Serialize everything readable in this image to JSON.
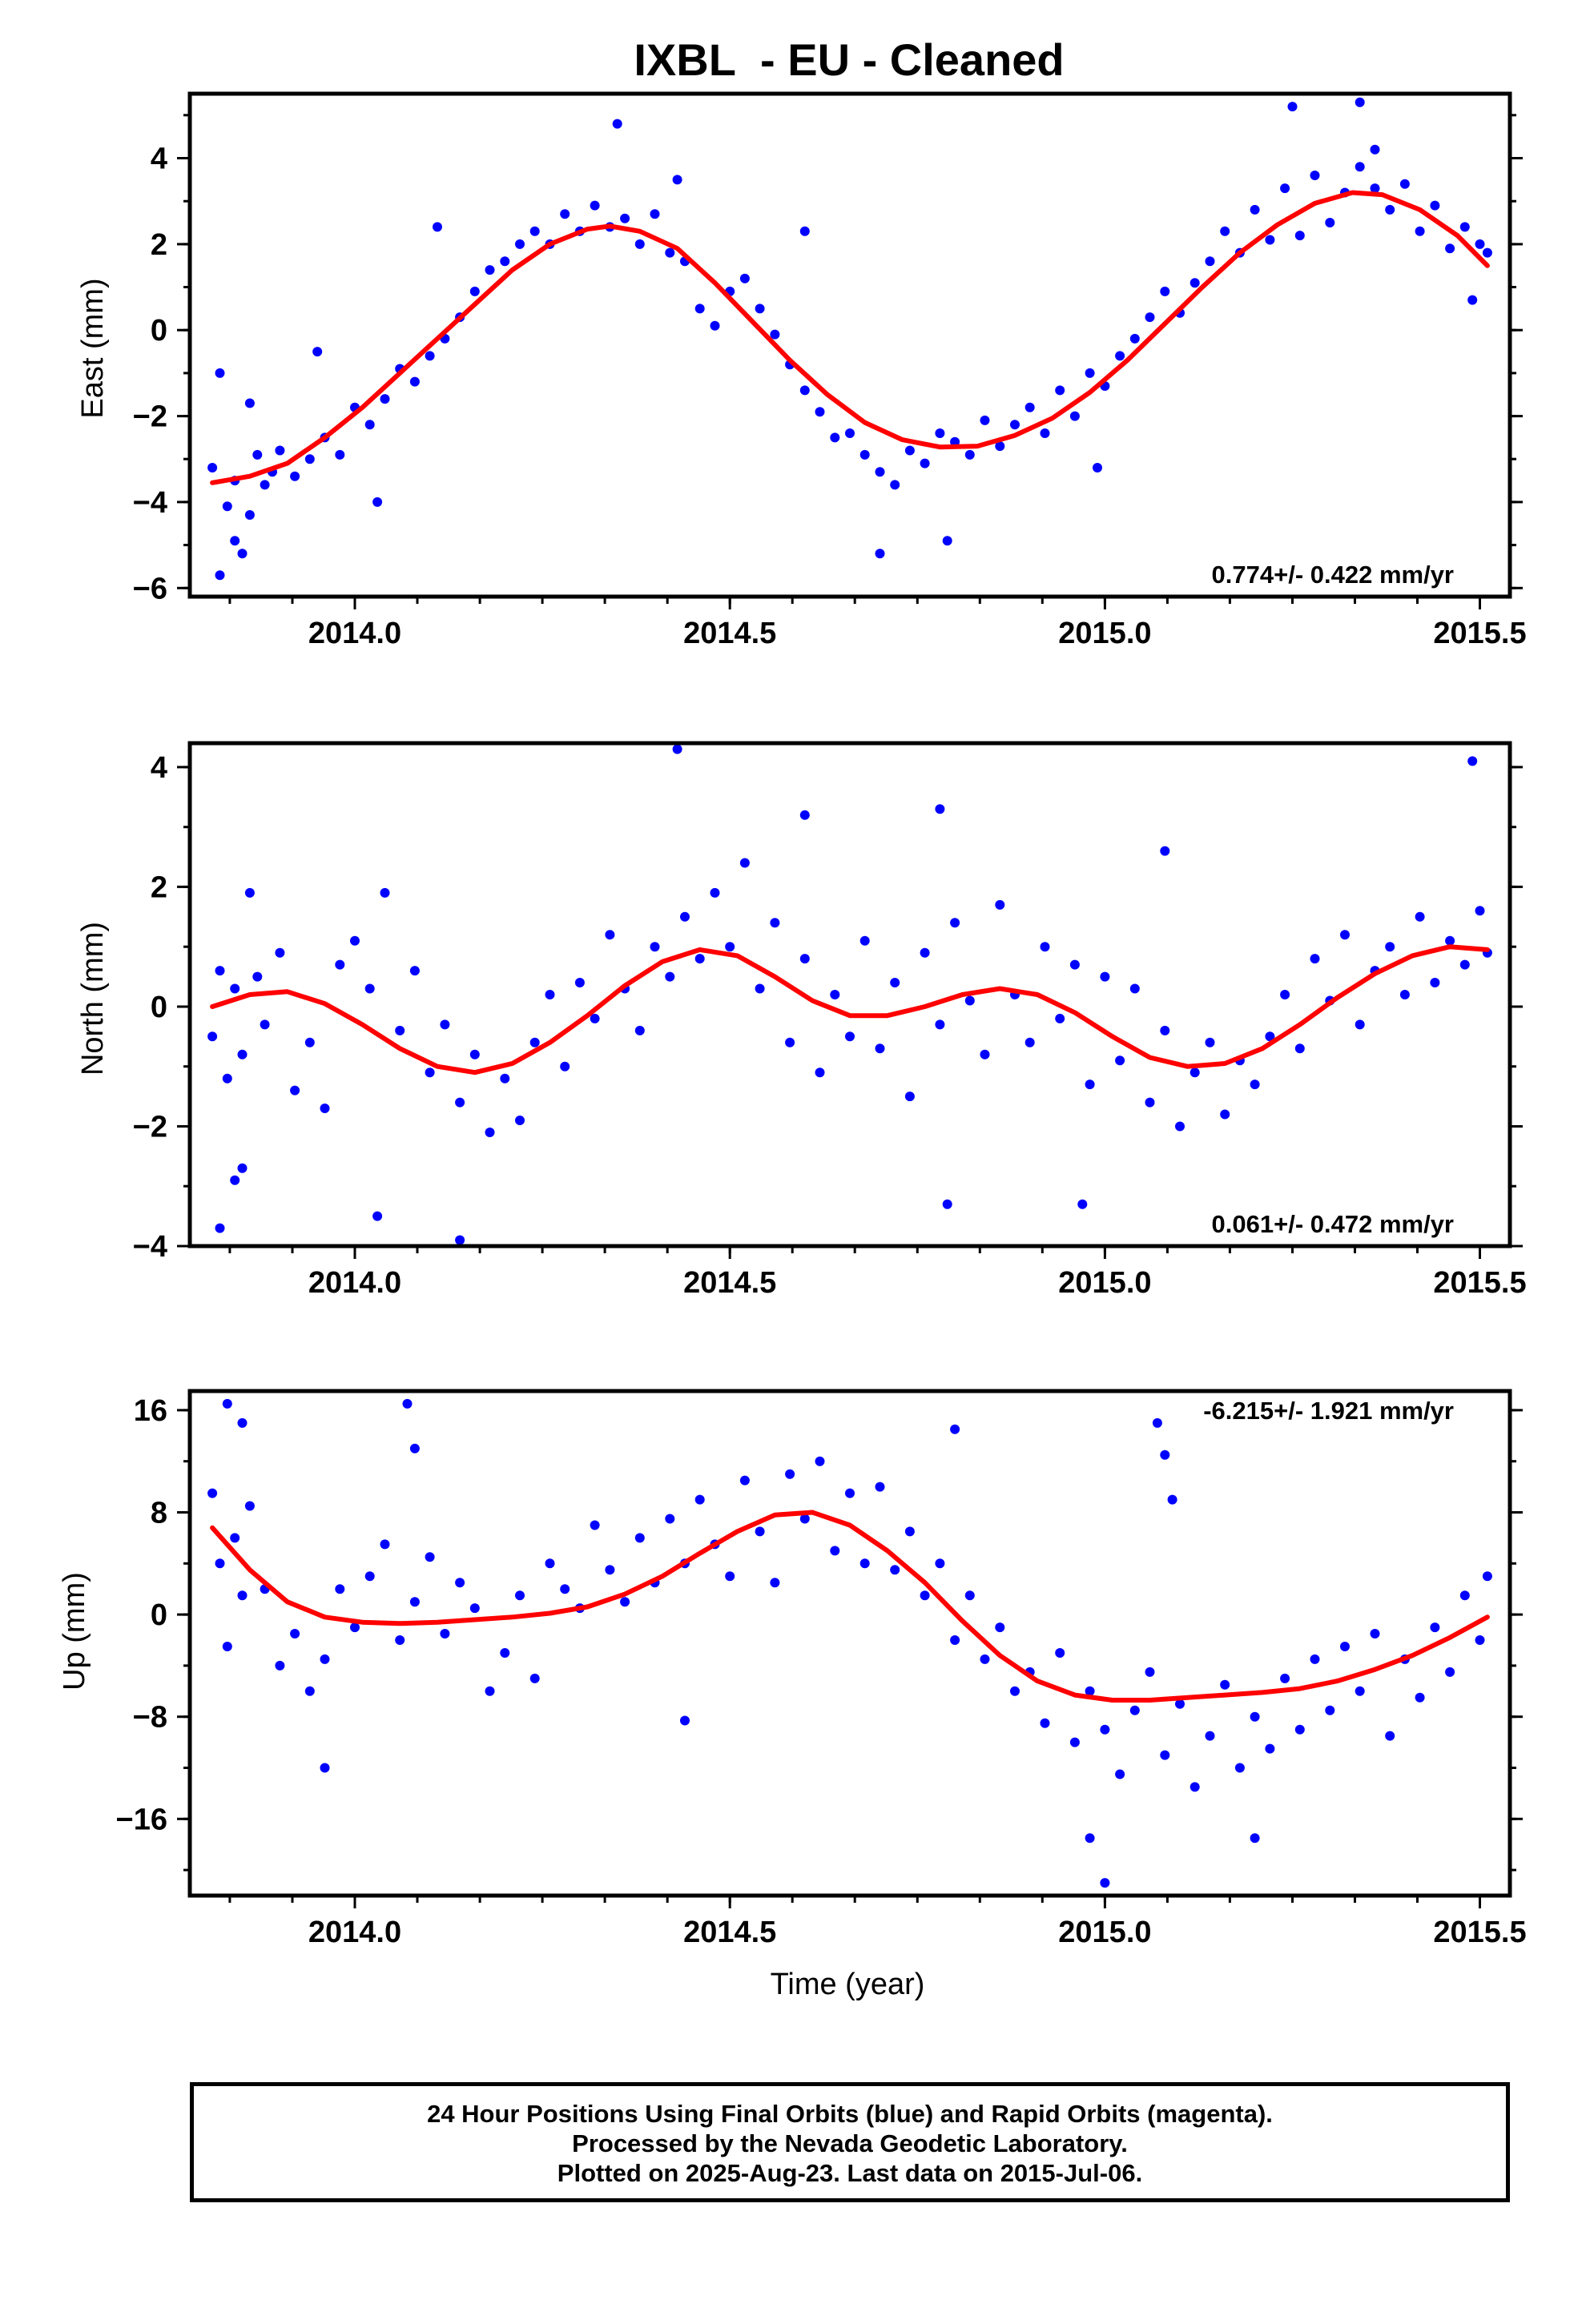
{
  "title": "IXBL  - EU - Cleaned",
  "xlabel": "Time (year)",
  "caption": {
    "line1": "24 Hour Positions Using Final Orbits (blue) and Rapid Orbits (magenta).",
    "line2": "Processed by the Nevada Geodetic Laboratory.",
    "line3": "Plotted on 2025-Aug-23. Last data on 2015-Jul-06."
  },
  "colors": {
    "points": "#0000ff",
    "fit": "#ff0000",
    "frame": "#000000"
  },
  "chart_data": [
    {
      "type": "scatter",
      "panel": "east",
      "ylabel": "East (mm)",
      "xlim": [
        2013.78,
        2015.54
      ],
      "ylim": [
        -6.2,
        5.5
      ],
      "x_ticks": [
        2014.0,
        2014.5,
        2015.0,
        2015.5
      ],
      "x_tick_labels": [
        "2014.0",
        "2014.5",
        "2015.0",
        "2015.5"
      ],
      "y_ticks": [
        -6,
        -4,
        -2,
        0,
        2,
        4
      ],
      "y_tick_labels": [
        "−6",
        "−4",
        "−2",
        "0",
        "2",
        "4"
      ],
      "rate_label": "0.774+/- 0.422 mm/yr",
      "rate_position": "bottom-right",
      "series": [
        {
          "kind": "points",
          "x": [
            2013.81,
            2013.82,
            2013.83,
            2013.84,
            2013.85,
            2013.86,
            2013.87,
            2013.88,
            2013.89,
            2013.9,
            2013.92,
            2013.94,
            2013.96,
            2013.98,
            2014.0,
            2014.02,
            2014.04,
            2014.06,
            2014.08,
            2014.1,
            2014.12,
            2014.14,
            2014.16,
            2014.18,
            2014.2,
            2014.22,
            2014.24,
            2014.26,
            2014.28,
            2014.3,
            2014.32,
            2014.34,
            2014.36,
            2014.38,
            2014.4,
            2014.42,
            2014.44,
            2014.46,
            2014.48,
            2014.5,
            2014.52,
            2014.54,
            2014.56,
            2014.58,
            2014.6,
            2014.62,
            2014.64,
            2014.66,
            2014.68,
            2014.7,
            2014.72,
            2014.74,
            2014.76,
            2014.78,
            2014.8,
            2014.82,
            2014.84,
            2014.86,
            2014.88,
            2014.9,
            2014.92,
            2014.94,
            2014.96,
            2014.98,
            2015.0,
            2015.02,
            2015.04,
            2015.06,
            2015.08,
            2015.1,
            2015.12,
            2015.14,
            2015.16,
            2015.18,
            2015.2,
            2015.22,
            2015.24,
            2015.26,
            2015.28,
            2015.3,
            2015.32,
            2015.34,
            2015.36,
            2015.38,
            2015.4,
            2015.42,
            2015.44,
            2015.46,
            2015.48,
            2015.5,
            2015.51,
            2013.82,
            2013.84,
            2013.86,
            2013.95,
            2014.03,
            2014.11,
            2014.35,
            2014.43,
            2014.6,
            2014.7,
            2014.79,
            2014.99,
            2015.25,
            2015.34,
            2015.36,
            2015.49
          ],
          "y": [
            -3.2,
            -1.0,
            -4.1,
            -3.5,
            -5.2,
            -4.3,
            -2.9,
            -3.6,
            -3.3,
            -2.8,
            -3.4,
            -3.0,
            -2.5,
            -2.9,
            -1.8,
            -2.2,
            -1.6,
            -0.9,
            -1.2,
            -0.6,
            -0.2,
            0.3,
            0.9,
            1.4,
            1.6,
            2.0,
            2.3,
            2.0,
            2.7,
            2.3,
            2.9,
            2.4,
            2.6,
            2.0,
            2.7,
            1.8,
            1.6,
            0.5,
            0.1,
            0.9,
            1.2,
            0.5,
            -0.1,
            -0.8,
            -1.4,
            -1.9,
            -2.5,
            -2.4,
            -2.9,
            -3.3,
            -3.6,
            -2.8,
            -3.1,
            -2.4,
            -2.6,
            -2.9,
            -2.1,
            -2.7,
            -2.2,
            -1.8,
            -2.4,
            -1.4,
            -2.0,
            -1.0,
            -1.3,
            -0.6,
            -0.2,
            0.3,
            0.9,
            0.4,
            1.1,
            1.6,
            2.3,
            1.8,
            2.8,
            2.1,
            3.3,
            2.2,
            3.6,
            2.5,
            3.2,
            3.8,
            3.3,
            2.8,
            3.4,
            2.3,
            2.9,
            1.9,
            2.4,
            2.0,
            1.8,
            -5.7,
            -4.9,
            -1.7,
            -0.5,
            -4.0,
            2.4,
            4.8,
            3.5,
            2.3,
            -5.2,
            -4.9,
            -3.2,
            5.2,
            5.3,
            4.2,
            0.7
          ]
        },
        {
          "kind": "fit",
          "x": [
            2013.81,
            2013.86,
            2013.91,
            2013.96,
            2014.01,
            2014.06,
            2014.11,
            2014.16,
            2014.21,
            2014.26,
            2014.31,
            2014.34,
            2014.38,
            2014.43,
            2014.48,
            2014.53,
            2014.58,
            2014.63,
            2014.68,
            2014.73,
            2014.78,
            2014.83,
            2014.88,
            2014.93,
            2014.98,
            2015.03,
            2015.08,
            2015.13,
            2015.18,
            2015.23,
            2015.28,
            2015.33,
            2015.37,
            2015.42,
            2015.47,
            2015.51
          ],
          "y": [
            -3.55,
            -3.4,
            -3.1,
            -2.5,
            -1.8,
            -1.0,
            -0.2,
            0.6,
            1.4,
            2.0,
            2.35,
            2.42,
            2.3,
            1.9,
            1.1,
            0.2,
            -0.7,
            -1.5,
            -2.15,
            -2.55,
            -2.72,
            -2.7,
            -2.45,
            -2.05,
            -1.45,
            -0.7,
            0.15,
            1.0,
            1.8,
            2.45,
            2.95,
            3.2,
            3.15,
            2.8,
            2.2,
            1.5
          ]
        }
      ]
    },
    {
      "type": "scatter",
      "panel": "north",
      "ylabel": "North (mm)",
      "xlim": [
        2013.78,
        2015.54
      ],
      "ylim": [
        -4.0,
        4.4
      ],
      "x_ticks": [
        2014.0,
        2014.5,
        2015.0,
        2015.5
      ],
      "x_tick_labels": [
        "2014.0",
        "2014.5",
        "2015.0",
        "2015.5"
      ],
      "y_ticks": [
        -4,
        -2,
        0,
        2,
        4
      ],
      "y_tick_labels": [
        "−4",
        "−2",
        "0",
        "2",
        "4"
      ],
      "rate_label": "0.061+/- 0.472 mm/yr",
      "rate_position": "bottom-right",
      "series": [
        {
          "kind": "points",
          "x": [
            2013.81,
            2013.82,
            2013.83,
            2013.84,
            2013.85,
            2013.86,
            2013.87,
            2013.88,
            2013.9,
            2013.92,
            2013.94,
            2013.96,
            2013.98,
            2014.0,
            2014.02,
            2014.04,
            2014.06,
            2014.08,
            2014.1,
            2014.12,
            2014.14,
            2014.16,
            2014.18,
            2014.2,
            2014.22,
            2014.24,
            2014.26,
            2014.28,
            2014.3,
            2014.32,
            2014.34,
            2014.36,
            2014.38,
            2014.4,
            2014.42,
            2014.44,
            2014.46,
            2014.48,
            2014.5,
            2014.52,
            2014.54,
            2014.56,
            2014.58,
            2014.6,
            2014.62,
            2014.64,
            2014.66,
            2014.68,
            2014.7,
            2014.72,
            2014.74,
            2014.76,
            2014.78,
            2014.8,
            2014.82,
            2014.84,
            2014.86,
            2014.88,
            2014.9,
            2014.92,
            2014.94,
            2014.96,
            2014.98,
            2015.0,
            2015.02,
            2015.04,
            2015.06,
            2015.08,
            2015.1,
            2015.12,
            2015.14,
            2015.16,
            2015.18,
            2015.2,
            2015.22,
            2015.24,
            2015.26,
            2015.28,
            2015.3,
            2015.32,
            2015.34,
            2015.36,
            2015.38,
            2015.4,
            2015.42,
            2015.44,
            2015.46,
            2015.48,
            2015.5,
            2015.51,
            2013.82,
            2013.84,
            2013.85,
            2014.03,
            2014.14,
            2014.43,
            2014.6,
            2014.78,
            2014.79,
            2014.97,
            2015.08,
            2015.49
          ],
          "y": [
            -0.5,
            0.6,
            -1.2,
            0.3,
            -0.8,
            1.9,
            0.5,
            -0.3,
            0.9,
            -1.4,
            -0.6,
            -1.7,
            0.7,
            1.1,
            0.3,
            1.9,
            -0.4,
            0.6,
            -1.1,
            -0.3,
            -1.6,
            -0.8,
            -2.1,
            -1.2,
            -1.9,
            -0.6,
            0.2,
            -1.0,
            0.4,
            -0.2,
            1.2,
            0.3,
            -0.4,
            1.0,
            0.5,
            1.5,
            0.8,
            1.9,
            1.0,
            2.4,
            0.3,
            1.4,
            -0.6,
            0.8,
            -1.1,
            0.2,
            -0.5,
            1.1,
            -0.7,
            0.4,
            -1.5,
            0.9,
            -0.3,
            1.4,
            0.1,
            -0.8,
            1.7,
            0.2,
            -0.6,
            1.0,
            -0.2,
            0.7,
            -1.3,
            0.5,
            -0.9,
            0.3,
            -1.6,
            -0.4,
            -2.0,
            -1.1,
            -0.6,
            -1.8,
            -0.9,
            -1.3,
            -0.5,
            0.2,
            -0.7,
            0.8,
            0.1,
            1.2,
            -0.3,
            0.6,
            1.0,
            0.2,
            1.5,
            0.4,
            1.1,
            0.7,
            1.6,
            0.9,
            -3.7,
            -2.9,
            -2.7,
            -3.5,
            -3.9,
            4.3,
            3.2,
            3.3,
            -3.3,
            -3.3,
            2.6,
            4.1
          ]
        },
        {
          "kind": "fit",
          "x": [
            2013.81,
            2013.86,
            2013.91,
            2013.96,
            2014.01,
            2014.06,
            2014.11,
            2014.16,
            2014.21,
            2014.26,
            2014.31,
            2014.36,
            2014.41,
            2014.46,
            2014.51,
            2014.56,
            2014.61,
            2014.66,
            2014.71,
            2014.76,
            2014.81,
            2014.86,
            2014.91,
            2014.96,
            2015.01,
            2015.06,
            2015.11,
            2015.16,
            2015.21,
            2015.26,
            2015.31,
            2015.36,
            2015.41,
            2015.46,
            2015.51
          ],
          "y": [
            0.0,
            0.2,
            0.25,
            0.05,
            -0.3,
            -0.7,
            -1.0,
            -1.1,
            -0.95,
            -0.6,
            -0.15,
            0.35,
            0.75,
            0.95,
            0.85,
            0.5,
            0.1,
            -0.15,
            -0.15,
            0.0,
            0.2,
            0.3,
            0.2,
            -0.1,
            -0.5,
            -0.85,
            -1.0,
            -0.95,
            -0.7,
            -0.3,
            0.15,
            0.55,
            0.85,
            1.0,
            0.95
          ]
        }
      ]
    },
    {
      "type": "scatter",
      "panel": "up",
      "ylabel": "Up (mm)",
      "xlim": [
        2013.78,
        2015.54
      ],
      "ylim": [
        -22,
        17.5
      ],
      "x_ticks": [
        2014.0,
        2014.5,
        2015.0,
        2015.5
      ],
      "x_tick_labels": [
        "2014.0",
        "2014.5",
        "2015.0",
        "2015.5"
      ],
      "y_ticks": [
        -16,
        -8,
        0,
        8,
        16
      ],
      "y_tick_labels": [
        "−16",
        "−8",
        "0",
        "8",
        "16"
      ],
      "rate_label": "-6.215+/- 1.921 mm/yr",
      "rate_position": "top-right",
      "series": [
        {
          "kind": "points",
          "x": [
            2013.81,
            2013.82,
            2013.83,
            2013.84,
            2013.85,
            2013.86,
            2013.88,
            2013.9,
            2013.92,
            2013.94,
            2013.96,
            2013.98,
            2014.0,
            2014.02,
            2014.04,
            2014.06,
            2014.08,
            2014.1,
            2014.12,
            2014.14,
            2014.16,
            2014.18,
            2014.2,
            2014.22,
            2014.24,
            2014.26,
            2014.28,
            2014.3,
            2014.32,
            2014.34,
            2014.36,
            2014.38,
            2014.4,
            2014.42,
            2014.44,
            2014.46,
            2014.48,
            2014.5,
            2014.52,
            2014.54,
            2014.56,
            2014.58,
            2014.6,
            2014.62,
            2014.64,
            2014.66,
            2014.68,
            2014.7,
            2014.72,
            2014.74,
            2014.76,
            2014.78,
            2014.8,
            2014.82,
            2014.84,
            2014.86,
            2014.88,
            2014.9,
            2014.92,
            2014.94,
            2014.96,
            2014.98,
            2015.0,
            2015.02,
            2015.04,
            2015.06,
            2015.08,
            2015.1,
            2015.12,
            2015.14,
            2015.16,
            2015.18,
            2015.2,
            2015.22,
            2015.24,
            2015.26,
            2015.28,
            2015.3,
            2015.32,
            2015.34,
            2015.36,
            2015.38,
            2015.4,
            2015.42,
            2015.44,
            2015.46,
            2015.48,
            2015.5,
            2015.51,
            2013.83,
            2013.85,
            2013.96,
            2014.07,
            2014.08,
            2014.44,
            2014.8,
            2014.98,
            2015.0,
            2015.07,
            2015.08,
            2015.09,
            2015.2
          ],
          "y": [
            9.5,
            4.0,
            -2.5,
            6.0,
            1.5,
            8.5,
            2.0,
            -4.0,
            -1.5,
            -6.0,
            -3.5,
            2.0,
            -1.0,
            3.0,
            5.5,
            -2.0,
            1.0,
            4.5,
            -1.5,
            2.5,
            0.5,
            -6.0,
            -3.0,
            1.5,
            -5.0,
            4.0,
            2.0,
            0.5,
            7.0,
            3.5,
            1.0,
            6.0,
            2.5,
            7.5,
            4.0,
            9.0,
            5.5,
            3.0,
            10.5,
            6.5,
            2.5,
            11.0,
            7.5,
            12.0,
            5.0,
            9.5,
            4.0,
            10.0,
            3.5,
            6.5,
            1.5,
            4.0,
            -2.0,
            1.5,
            -3.5,
            -1.0,
            -6.0,
            -4.5,
            -8.5,
            -3.0,
            -10.0,
            -6.0,
            -9.0,
            -12.5,
            -7.5,
            -4.5,
            -11.0,
            -7.0,
            -13.5,
            -9.5,
            -5.5,
            -12.0,
            -8.0,
            -10.5,
            -5.0,
            -9.0,
            -3.5,
            -7.5,
            -2.5,
            -6.0,
            -1.5,
            -9.5,
            -3.5,
            -6.5,
            -1.0,
            -4.5,
            1.5,
            -2.0,
            3.0,
            16.5,
            15.0,
            -12.0,
            16.5,
            13.0,
            -8.3,
            14.5,
            -17.5,
            -21.0,
            15.0,
            12.5,
            9.0,
            -17.5
          ]
        },
        {
          "kind": "fit",
          "x": [
            2013.81,
            2013.86,
            2013.91,
            2013.96,
            2014.01,
            2014.06,
            2014.11,
            2014.16,
            2014.21,
            2014.26,
            2014.31,
            2014.36,
            2014.41,
            2014.46,
            2014.51,
            2014.56,
            2014.61,
            2014.66,
            2014.71,
            2014.76,
            2014.81,
            2014.86,
            2014.91,
            2014.96,
            2015.01,
            2015.06,
            2015.11,
            2015.16,
            2015.21,
            2015.26,
            2015.31,
            2015.36,
            2015.41,
            2015.46,
            2015.51
          ],
          "y": [
            6.8,
            3.5,
            1.0,
            -0.2,
            -0.6,
            -0.7,
            -0.6,
            -0.4,
            -0.2,
            0.1,
            0.6,
            1.6,
            3.0,
            4.8,
            6.5,
            7.8,
            8.0,
            7.0,
            5.0,
            2.5,
            -0.5,
            -3.2,
            -5.2,
            -6.3,
            -6.7,
            -6.7,
            -6.5,
            -6.3,
            -6.1,
            -5.8,
            -5.2,
            -4.3,
            -3.2,
            -1.8,
            -0.2
          ]
        }
      ]
    }
  ]
}
